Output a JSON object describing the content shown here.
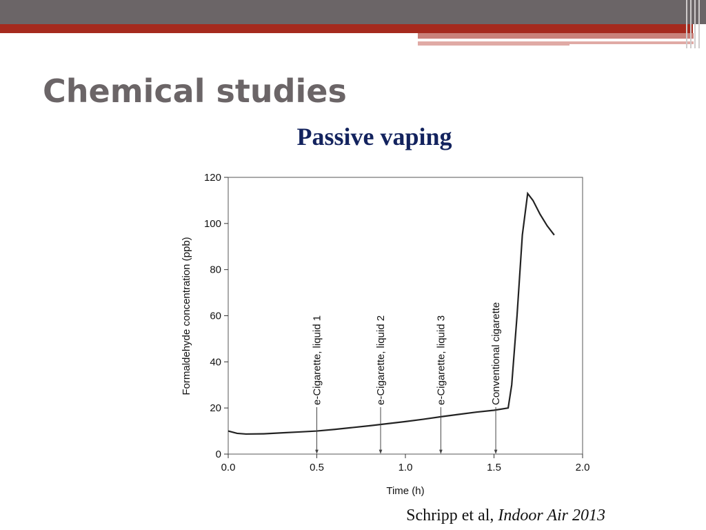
{
  "slide": {
    "title": "Chemical studies",
    "subtitle": "Passive vaping",
    "citation": {
      "author": "Schripp et al,",
      "journal": "Indoor Air 2013"
    }
  },
  "chart_data": {
    "type": "line",
    "xlabel": "Time (h)",
    "ylabel": "Formaldehyde concentration (ppb)",
    "x": [
      0,
      0.05,
      0.1,
      0.2,
      0.3,
      0.4,
      0.5,
      0.6,
      0.7,
      0.8,
      0.9,
      1.0,
      1.1,
      1.2,
      1.3,
      1.4,
      1.5,
      1.58,
      1.6,
      1.63,
      1.66,
      1.69,
      1.72,
      1.76,
      1.8,
      1.84
    ],
    "values": [
      10,
      9,
      8.7,
      8.8,
      9.2,
      9.6,
      10,
      10.7,
      11.5,
      12.3,
      13.2,
      14.1,
      15.1,
      16.2,
      17.2,
      18.2,
      19,
      20,
      30,
      60,
      95,
      113,
      110,
      104,
      99,
      95
    ],
    "color": "#222222",
    "xlim": [
      0,
      2
    ],
    "ylim": [
      0,
      120
    ],
    "xticks": [
      {
        "value": 0,
        "label": "0.0"
      },
      0.5,
      {
        "value": 1,
        "label": "1.0"
      },
      1.5,
      {
        "value": 2,
        "label": "2.0"
      }
    ],
    "yticks": [
      0,
      20,
      40,
      60,
      80,
      100,
      120
    ],
    "annotations": [
      {
        "text": "e-Cigarette, liquid 1",
        "x": 0.5
      },
      {
        "text": "e-Cigarette, liquid 2",
        "x": 0.86
      },
      {
        "text": "e-Cigarette, liquid 3",
        "x": 1.2
      },
      {
        "text": "Conventional cigarette",
        "x": 1.51
      }
    ]
  }
}
